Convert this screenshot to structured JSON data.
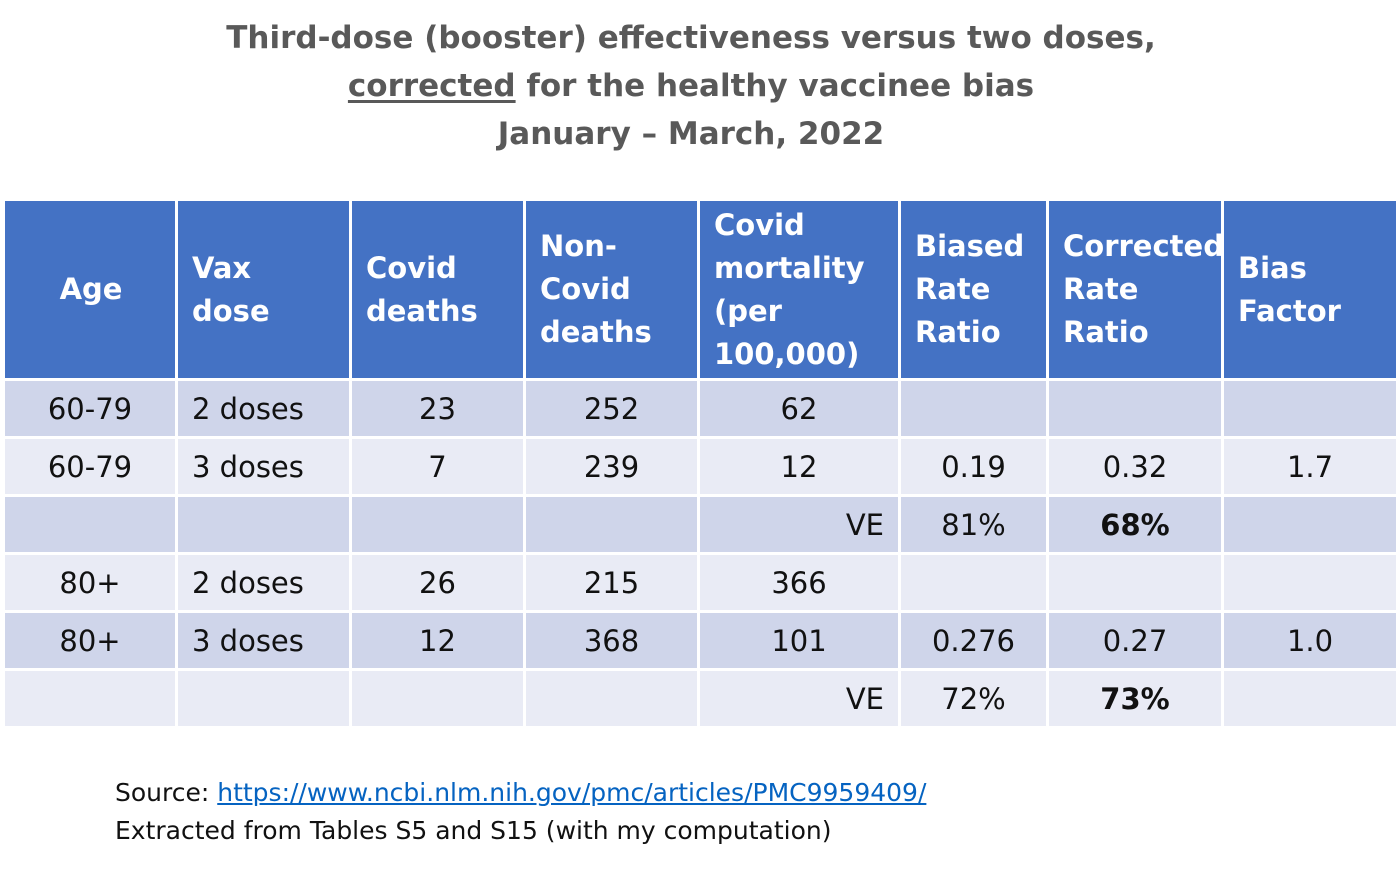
{
  "title": {
    "line1": "Third-dose (booster) effectiveness versus two doses,",
    "line2_underlined": "corrected",
    "line2_rest": " for the healthy vaccinee bias",
    "line3": "January – March, 2022"
  },
  "table": {
    "headers": [
      "Age",
      "Vax dose",
      "Covid deaths",
      "Non-Covid deaths",
      "Covid mortality (per 100,000)",
      "Biased Rate Ratio",
      "Corrected Rate Ratio",
      "Bias Factor"
    ],
    "rows": [
      [
        "60-79",
        "2 doses",
        "23",
        "252",
        "62",
        "",
        "",
        ""
      ],
      [
        "60-79",
        "3 doses",
        "7",
        "239",
        "12",
        "0.19",
        "0.32",
        "1.7"
      ],
      [
        "",
        "",
        "",
        "",
        "VE",
        "81%",
        "68%",
        ""
      ],
      [
        "80+",
        "2 doses",
        "26",
        "215",
        "366",
        "",
        "",
        ""
      ],
      [
        "80+",
        "3 doses",
        "12",
        "368",
        "101",
        "0.276",
        "0.27",
        "1.0"
      ],
      [
        "",
        "",
        "",
        "",
        "VE",
        "72%",
        "73%",
        ""
      ]
    ]
  },
  "source": {
    "label": "Source: ",
    "url": "https://www.ncbi.nlm.nih.gov/pmc/articles/PMC9959409/",
    "note": "Extracted from Tables S5 and S15 (with my computation)"
  },
  "colors": {
    "header_bg": "#4472c4",
    "row_dark": "#cfd5ea",
    "row_light": "#e9ebf5",
    "title_text": "#595959",
    "link": "#0563c1"
  }
}
